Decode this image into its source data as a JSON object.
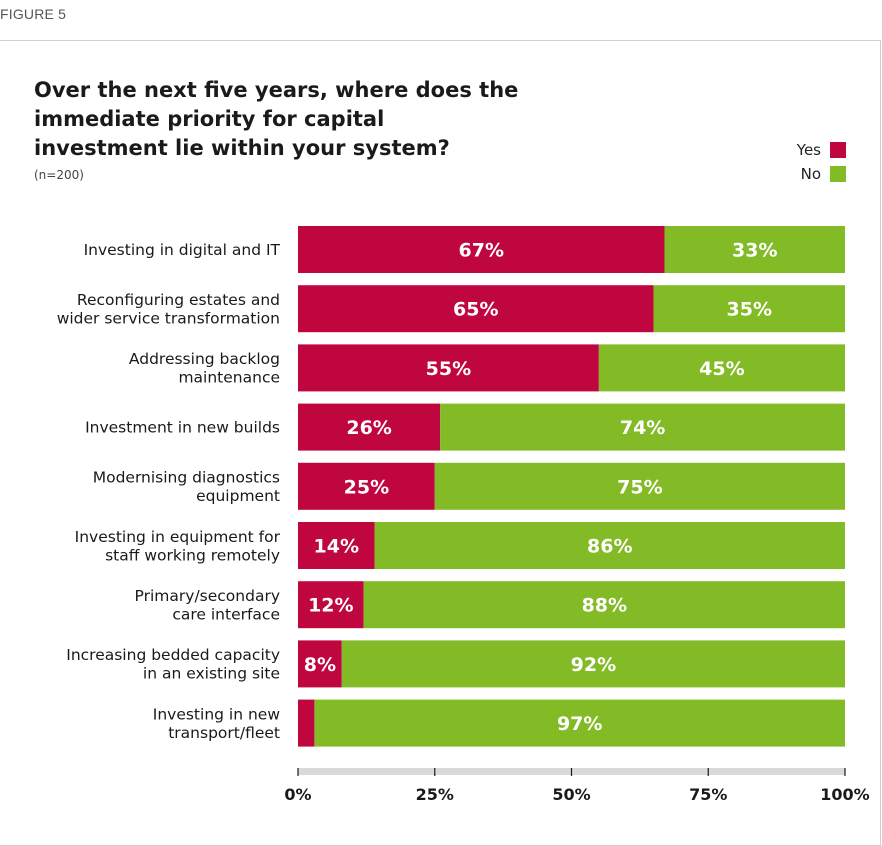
{
  "figure_label": "FIGURE 5",
  "colors": {
    "yes": "#c0063f",
    "no": "#83bb26",
    "axis": "#d9d9d9"
  },
  "chart_data": {
    "type": "bar",
    "orientation": "horizontal",
    "stacked": true,
    "title": "Over the next five years, where does the immediate priority for capital investment lie within your system?",
    "subtitle": "(n=200)",
    "categories": [
      [
        "Investing in digital and IT"
      ],
      [
        "Reconfiguring estates and",
        "wider service transformation"
      ],
      [
        "Addressing backlog",
        "maintenance"
      ],
      [
        "Investment in new builds"
      ],
      [
        "Modernising diagnostics",
        "equipment"
      ],
      [
        "Investing in equipment for",
        "staff working remotely"
      ],
      [
        "Primary/secondary",
        "care interface"
      ],
      [
        "Increasing bedded capacity",
        "in an existing site"
      ],
      [
        "Investing in new",
        "transport/fleet"
      ]
    ],
    "series": [
      {
        "name": "Yes",
        "values": [
          67,
          65,
          55,
          26,
          25,
          14,
          12,
          8,
          3
        ],
        "labels": [
          "67%",
          "65%",
          "55%",
          "26%",
          "25%",
          "14%",
          "12%",
          "8%",
          ""
        ]
      },
      {
        "name": "No",
        "values": [
          33,
          35,
          45,
          74,
          75,
          86,
          88,
          92,
          97
        ],
        "labels": [
          "33%",
          "35%",
          "45%",
          "74%",
          "75%",
          "86%",
          "88%",
          "92%",
          "97%"
        ]
      }
    ],
    "xlim": [
      0,
      100
    ],
    "xticks": [
      "0%",
      "25%",
      "50%",
      "75%",
      "100%"
    ],
    "legend_position": "top-right",
    "grid": false
  }
}
